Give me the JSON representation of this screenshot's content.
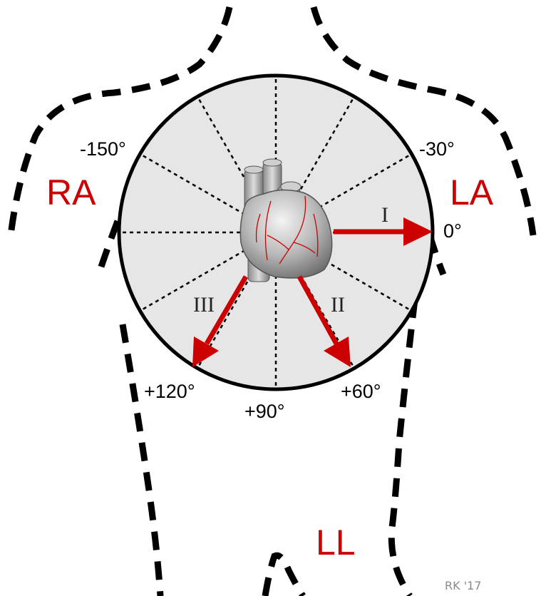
{
  "colors": {
    "accent": "#cc0000",
    "circle_fill": "#e6e6e6",
    "outline": "#000000",
    "credit": "#8a8a8a"
  },
  "limbs": {
    "ra": "RA",
    "la": "LA",
    "ll": "LL"
  },
  "angles": {
    "minus150": "-150°",
    "minus30": "-30°",
    "zero": "0°",
    "plus60": "+60°",
    "plus90": "+90°",
    "plus120": "+120°"
  },
  "leads": {
    "i": "I",
    "ii": "II",
    "iii": "III"
  },
  "credit": "RK '17",
  "icons": {
    "heart": "heart-icon"
  }
}
